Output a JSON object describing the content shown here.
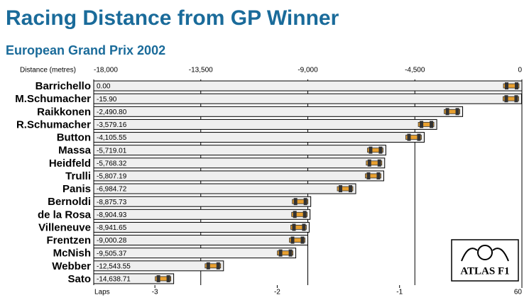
{
  "chart_data": {
    "type": "bar",
    "orientation": "horizontal",
    "title": "Racing Distance from GP Winner",
    "subtitle": "European Grand Prix 2002",
    "x_label": "Distance (metres)",
    "x2_label": "Laps",
    "logo": "ATLAS F1",
    "categories": [
      "Barrichello",
      "M.Schumacher",
      "Raikkonen",
      "R.Schumacher",
      "Button",
      "Massa",
      "Heidfeld",
      "Trulli",
      "Panis",
      "Bernoldi",
      "de la Rosa",
      "Villeneuve",
      "Frentzen",
      "McNish",
      "Webber",
      "Sato"
    ],
    "values": [
      0,
      -15.9,
      -2490.8,
      -3579.16,
      -4105.55,
      -5719.01,
      -5768.32,
      -5807.19,
      -6984.72,
      -8875.73,
      -8904.93,
      -8941.65,
      -9000.28,
      -9505.37,
      -12543.55,
      -14638.71
    ],
    "value_labels": [
      "0.00",
      "-15.90",
      "-2,490.80",
      "-3,579.16",
      "-4,105.55",
      "-5,719.01",
      "-5,768.32",
      "-5,807.19",
      "-6,984.72",
      "-8,875.73",
      "-8,904.93",
      "-8,941.65",
      "-9,000.28",
      "-9,505.37",
      "-12,543.55",
      "-14,638.71"
    ],
    "color": "#efefef",
    "xlim": [
      -18000,
      0
    ],
    "xticks": [
      {
        "value": -18000,
        "label": "-18,000"
      },
      {
        "value": -13500,
        "label": "-13,500"
      },
      {
        "value": -9000,
        "label": "-9,000"
      },
      {
        "value": -4500,
        "label": "-4,500"
      },
      0
    ],
    "x2lim": [
      -3.5,
      0
    ],
    "x2ticks": [
      -3,
      -2,
      -1,
      {
        "value": 0,
        "label": "60"
      }
    ],
    "grid": true
  }
}
